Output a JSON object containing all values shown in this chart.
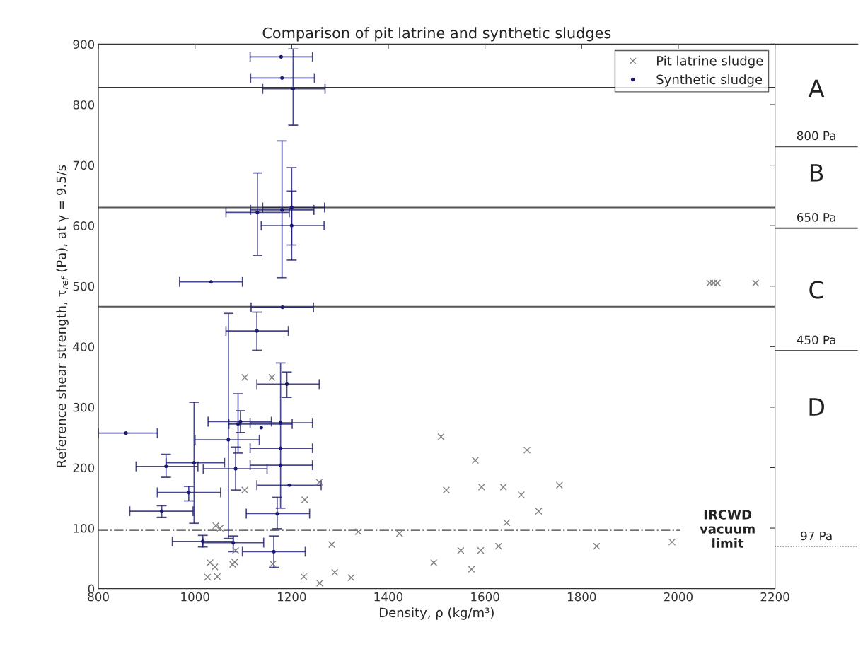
{
  "chart_data": [
    {
      "type": "scatter",
      "title": "Comparison of pit latrine and synthetic sludges",
      "xlabel": "Density, ρ (kg/m³)",
      "ylabel": "Reference shear strength, τ$_{ref}$ (Pa), at γ = 9.5/s",
      "xlim": [
        800,
        2200
      ],
      "ylim": [
        0,
        900
      ],
      "xticks": [
        800,
        1000,
        1200,
        1400,
        1600,
        1800,
        2000,
        2200
      ],
      "yticks": [
        0,
        100,
        200,
        300,
        400,
        500,
        600,
        700,
        800,
        900
      ],
      "grid": false,
      "legend": "top right",
      "series": [
        {
          "name": "Pit latrine sludge",
          "type": "scatter",
          "marker": "cross",
          "color": "#808080",
          "x": [
            2065,
            2073,
            2081,
            2160,
            1103,
            1159,
            1103,
            1227,
            1257,
            1043,
            1052,
            1031,
            1041,
            1026,
            1046,
            1078,
            1082,
            1084,
            1161,
            1509,
            1687,
            1580,
            1520,
            1593,
            1638,
            1675,
            1754,
            1711,
            1645,
            1338,
            1423,
            1283,
            1550,
            1591,
            1628,
            1831,
            1987,
            1494,
            1572,
            1225,
            1258,
            1289,
            1323
          ],
          "values": [
            505,
            505,
            505,
            505,
            349,
            349,
            163,
            147,
            176,
            104,
            100,
            43,
            36,
            19,
            20,
            40,
            44,
            63,
            41,
            251,
            229,
            212,
            163,
            168,
            168,
            155,
            171,
            128,
            109,
            94,
            91,
            73,
            63,
            63,
            70,
            70,
            77,
            43,
            32,
            20,
            9,
            27,
            18
          ]
        },
        {
          "name": "Synthetic sludge",
          "type": "scatter",
          "marker": "circle",
          "color": "#1a1a6e",
          "x": [
            1178,
            1203,
            1180,
            1033,
            1129,
            1180,
            1200,
            1200,
            1181,
            1128,
            1190,
            857,
            1094,
            1089,
            1137,
            1177,
            1069,
            1177,
            1177,
            1084,
            1195,
            998,
            940,
            987,
            931,
            1170,
            1016,
            1079,
            1163
          ],
          "values": [
            879,
            826,
            844,
            507,
            622,
            626,
            630,
            600,
            465,
            426,
            338,
            257,
            276,
            272,
            266,
            274,
            246,
            232,
            204,
            198,
            171,
            208,
            202,
            159,
            128,
            124,
            78,
            76,
            61
          ],
          "errors": [
            null,
            [
              766,
              892
            ],
            null,
            null,
            [
              551,
              687
            ],
            [
              514,
              740
            ],
            [
              568,
              657
            ],
            [
              543,
              696
            ],
            null,
            [
              394,
              457
            ],
            [
              316,
              358
            ],
            null,
            [
              258,
              294
            ],
            [
              224,
              322
            ],
            null,
            [
              133,
              373
            ],
            [
              83,
              455
            ],
            null,
            null,
            [
              163,
              234
            ],
            null,
            [
              108,
              308
            ],
            [
              184,
              222
            ],
            [
              145,
              169
            ],
            [
              118,
              137
            ],
            [
              99,
              151
            ],
            [
              69,
              88
            ],
            [
              61,
              87
            ],
            [
              35,
              87
            ]
          ],
          "xerrors": [
            [
              1114,
              1243
            ],
            [
              1140,
              1269
            ],
            [
              1115,
              1247
            ],
            [
              968,
              1098
            ],
            [
              1064,
              1195
            ],
            [
              1115,
              1246
            ],
            [
              1140,
              1268
            ],
            [
              1137,
              1267
            ],
            [
              1116,
              1245
            ],
            [
              1064,
              1193
            ],
            [
              1128,
              1257
            ],
            [
              800,
              922
            ],
            [
              1027,
              1158
            ],
            [
              1070,
              1201
            ],
            null,
            [
              1114,
              1243
            ],
            [
              1000,
              1133
            ],
            [
              1114,
              1243
            ],
            [
              1114,
              1243
            ],
            [
              1017,
              1149
            ],
            [
              1128,
              1261
            ],
            [
              940,
              1061
            ],
            [
              878,
              1006
            ],
            [
              922,
              1053
            ],
            [
              865,
              996
            ],
            [
              1106,
              1237
            ],
            [
              953,
              1079
            ],
            [
              1016,
              1142
            ],
            [
              1098,
              1228
            ]
          ]
        }
      ],
      "ref_lines": [
        {
          "axis": "y",
          "value": 828,
          "color": "#333333",
          "line_style": "solid"
        },
        {
          "axis": "y",
          "value": 630,
          "color": "#555555",
          "line_style": "solid"
        },
        {
          "axis": "y",
          "value": 466,
          "color": "#555555",
          "line_style": "solid"
        },
        {
          "axis": "y",
          "value": 97,
          "color": "#444444",
          "line_style": "dashdot",
          "label": "IRCWD\nvacuum\nlimit"
        }
      ]
    },
    {
      "type": "other",
      "annotations": [
        "A",
        "800 Pa",
        "B",
        "650 Pa",
        "C",
        "450 Pa",
        "D",
        "97 Pa"
      ]
    }
  ]
}
